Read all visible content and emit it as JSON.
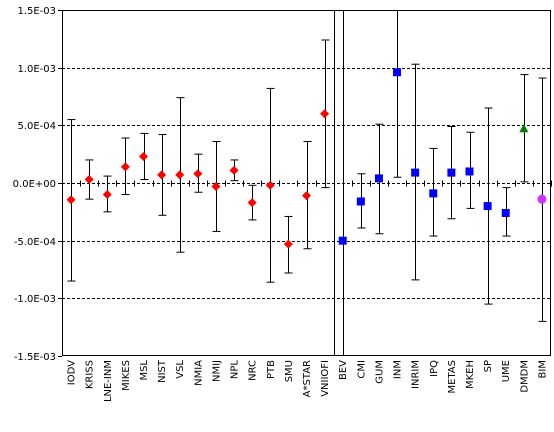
{
  "chart_data": {
    "type": "scatter",
    "ylim": [
      -0.0015,
      0.0015
    ],
    "yticks": [
      -0.0015,
      -0.001,
      -0.0005,
      0,
      0.0005,
      0.001,
      0.0015
    ],
    "ytick_labels": [
      "-1.5E-03",
      "-1.0E-03",
      "-5.0E-04",
      "0.0E+00",
      "5.0E-04",
      "1.0E-03",
      "1.5E-03"
    ],
    "grid": "horizontal dashed",
    "categories": [
      "IODV",
      "KRISS",
      "LNE-INM",
      "MIKES",
      "MSL",
      "NIST",
      "VSL",
      "NMIA",
      "NMIJ",
      "NPL",
      "NRC",
      "PTB",
      "SMU",
      "A*STAR",
      "VNIIOFI",
      "BEV",
      "CMI",
      "GUM",
      "INM",
      "INRIM",
      "IPQ",
      "METAS",
      "MKEH",
      "SP",
      "UME",
      "DMDM",
      "BIM"
    ],
    "series": [
      {
        "marker": "diamond",
        "color": "#ff0000",
        "points": [
          {
            "category": "IODV",
            "value": -0.000145,
            "low": -0.00085,
            "high": 0.00055
          },
          {
            "category": "KRISS",
            "value": 3e-05,
            "low": -0.00014,
            "high": 0.0002
          },
          {
            "category": "LNE-INM",
            "value": -0.0001,
            "low": -0.00025,
            "high": 6e-05
          },
          {
            "category": "MIKES",
            "value": 0.00014,
            "low": -0.0001,
            "high": 0.00039
          },
          {
            "category": "MSL",
            "value": 0.00023,
            "low": 3e-05,
            "high": 0.00043
          },
          {
            "category": "NIST",
            "value": 7e-05,
            "low": -0.00028,
            "high": 0.00042
          },
          {
            "category": "VSL",
            "value": 7e-05,
            "low": -0.0006,
            "high": 0.00074
          },
          {
            "category": "NMIA",
            "value": 8e-05,
            "low": -8e-05,
            "high": 0.00025
          },
          {
            "category": "NMIJ",
            "value": -3e-05,
            "low": -0.00042,
            "high": 0.00036
          },
          {
            "category": "NPL",
            "value": 0.00011,
            "low": 2e-05,
            "high": 0.0002
          },
          {
            "category": "NRC",
            "value": -0.00017,
            "low": -0.00032,
            "high": -2e-05
          },
          {
            "category": "PTB",
            "value": -2e-05,
            "low": -0.00086,
            "high": 0.00082
          },
          {
            "category": "SMU",
            "value": -0.00053,
            "low": -0.00078,
            "high": -0.00029
          },
          {
            "category": "A*STAR",
            "value": -0.00011,
            "low": -0.00057,
            "high": 0.00036
          },
          {
            "category": "VNIIOFI",
            "value": 0.0006,
            "low": -4e-05,
            "high": 0.00124
          }
        ]
      },
      {
        "marker": "square",
        "color": "#0000ff",
        "points": [
          {
            "category": "BEV",
            "value": -0.0005,
            "low": -0.0015,
            "high": 0.0015
          },
          {
            "category": "CMI",
            "value": -0.00016,
            "low": -0.00039,
            "high": 8e-05
          },
          {
            "category": "GUM",
            "value": 4e-05,
            "low": -0.00044,
            "high": 0.00051
          },
          {
            "category": "INM",
            "value": 0.00096,
            "low": 5e-05,
            "high": 0.0015
          },
          {
            "category": "INRIM",
            "value": 9e-05,
            "low": -0.00084,
            "high": 0.00103
          },
          {
            "category": "IPQ",
            "value": -9e-05,
            "low": -0.00046,
            "high": 0.0003
          },
          {
            "category": "METAS",
            "value": 9e-05,
            "low": -0.00031,
            "high": 0.00049
          },
          {
            "category": "MKEH",
            "value": 0.0001,
            "low": -0.00022,
            "high": 0.00044
          },
          {
            "category": "SP",
            "value": -0.0002,
            "low": -0.00105,
            "high": 0.00065
          },
          {
            "category": "UME",
            "value": -0.00026,
            "low": -0.00046,
            "high": -4e-05
          }
        ]
      },
      {
        "marker": "triangle",
        "color": "#008000",
        "points": [
          {
            "category": "DMDM",
            "value": 0.00047,
            "low": 1e-05,
            "high": 0.00094
          }
        ]
      },
      {
        "marker": "circle",
        "color": "#cc33ff",
        "points": [
          {
            "category": "BIM",
            "value": -0.00014,
            "low": -0.0012,
            "high": 0.00091
          }
        ]
      }
    ]
  }
}
